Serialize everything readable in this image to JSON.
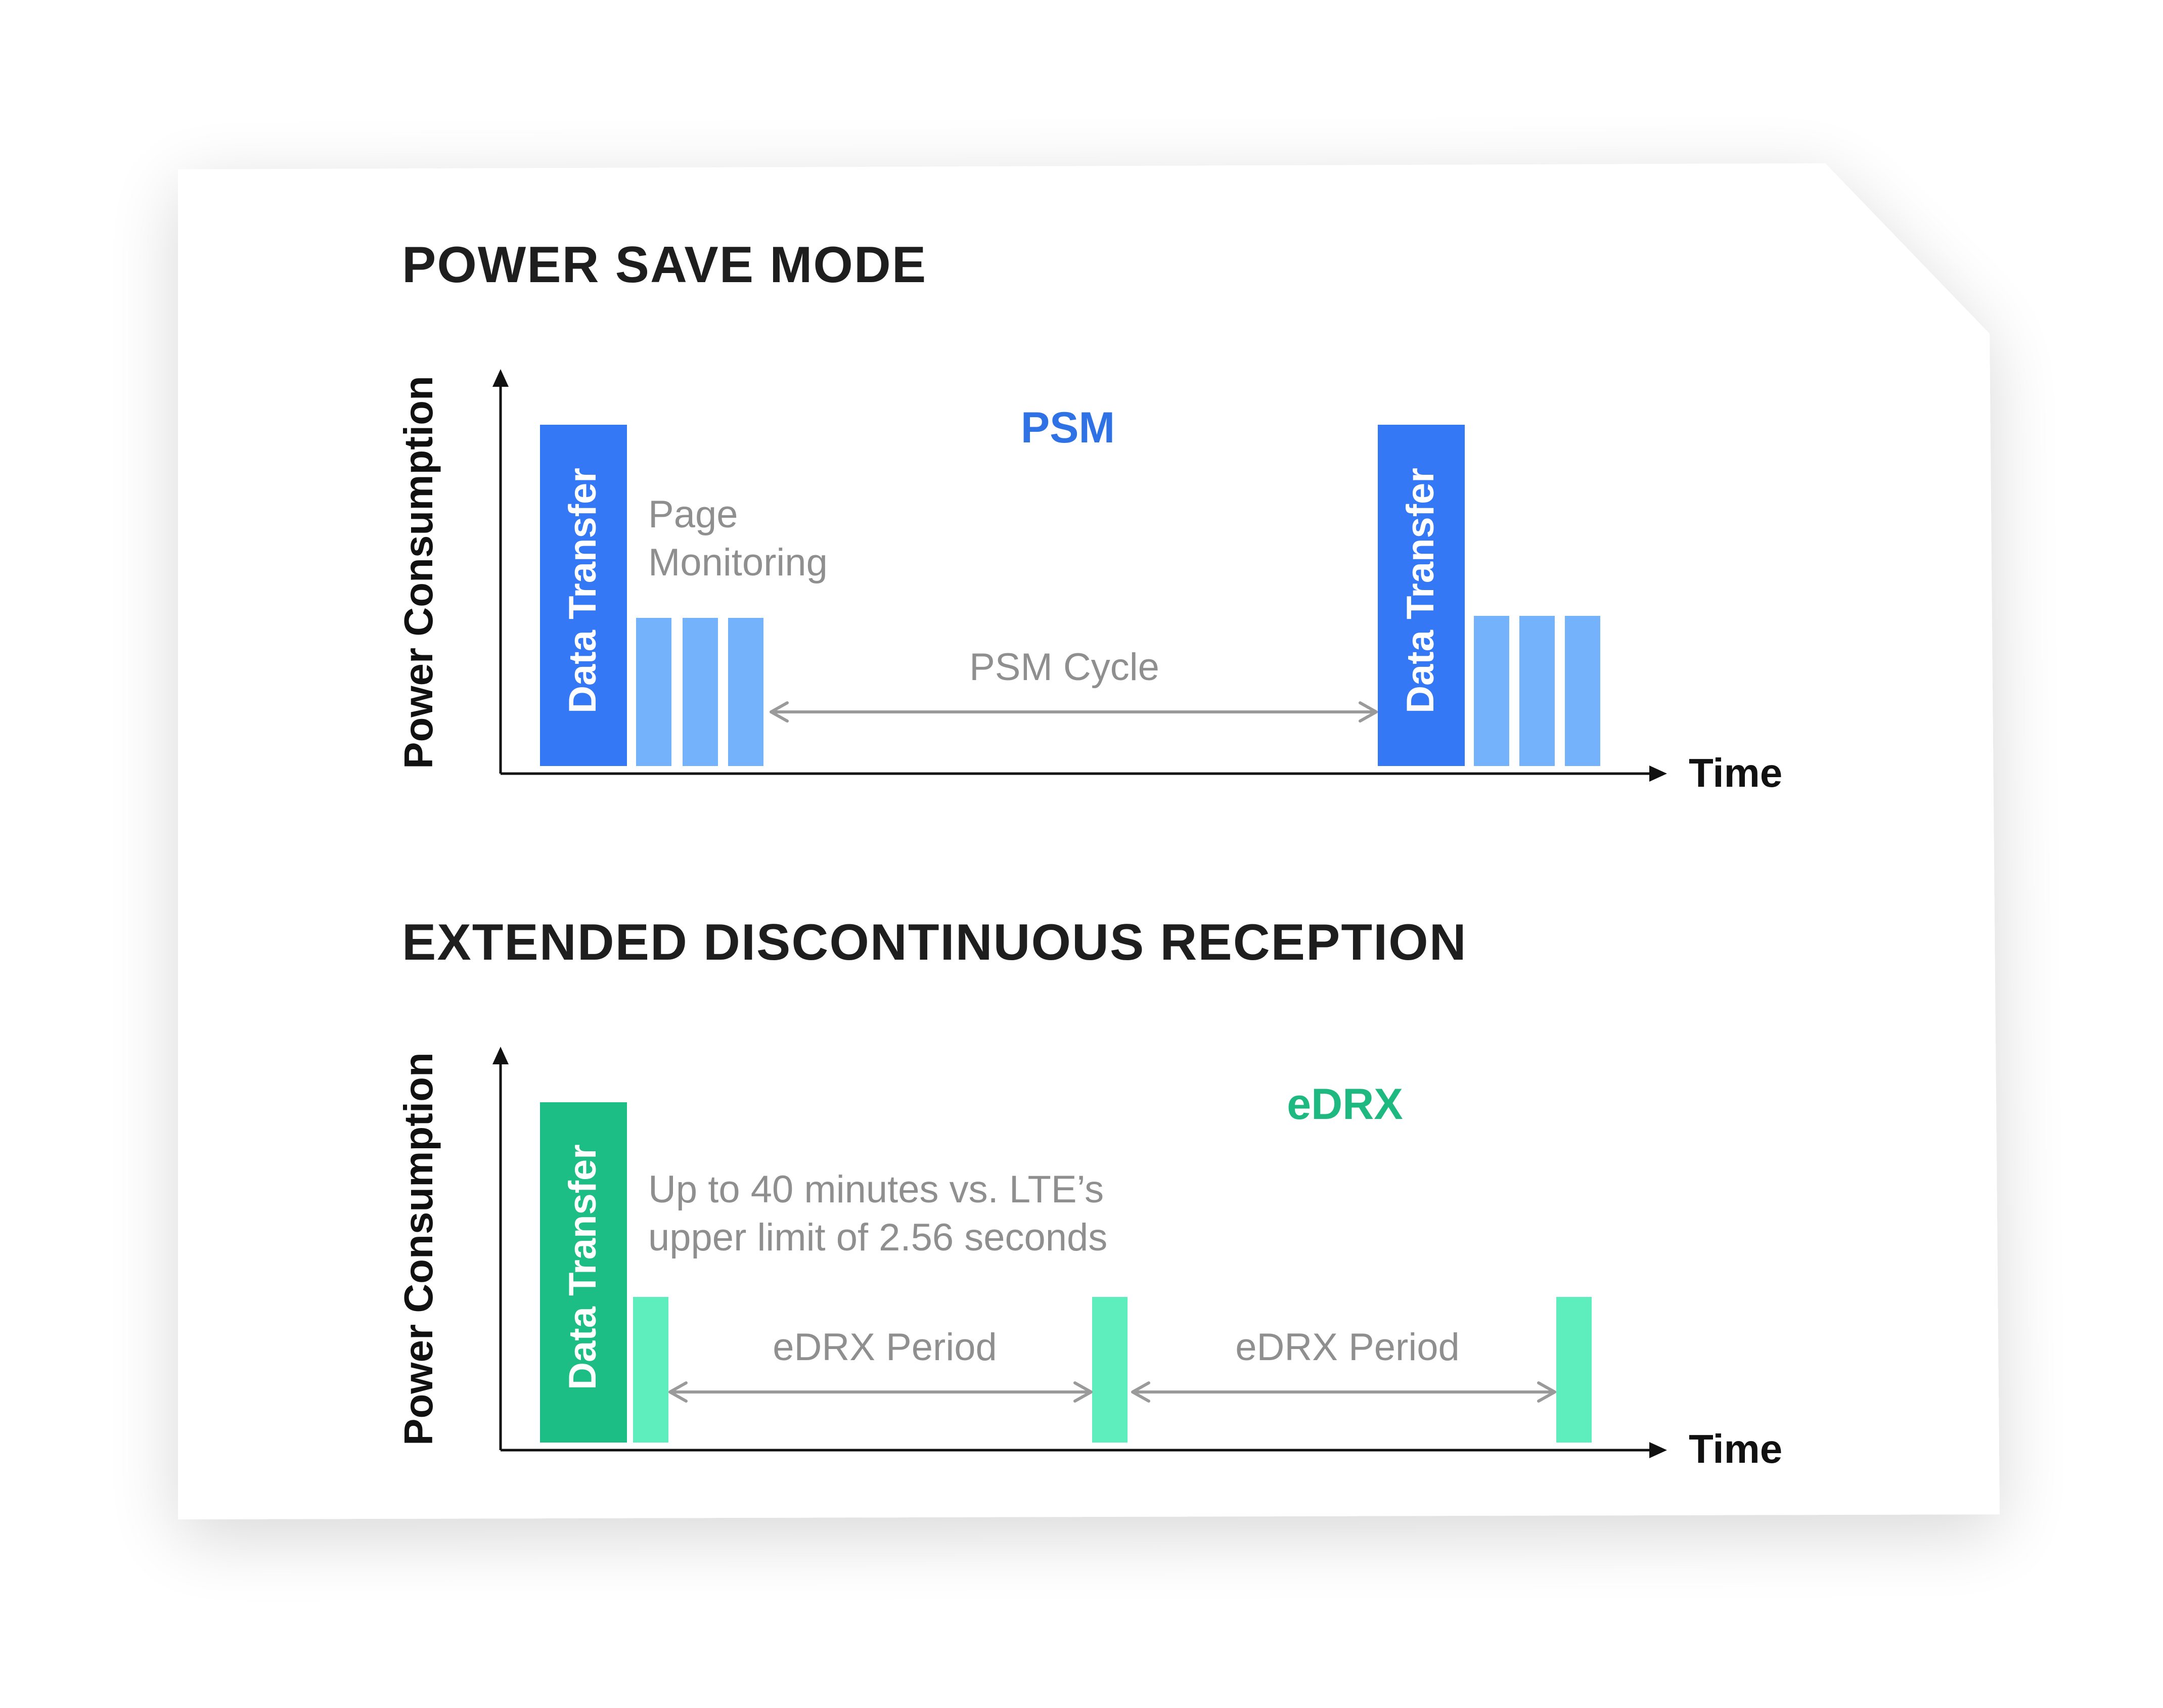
{
  "colors": {
    "psm_dark": "#3478F6",
    "psm_light": "#74B3FC",
    "edrx_dark": "#1DBE86",
    "edrx_light": "#5EEDBD",
    "psm_label": "#2F72E6",
    "edrx_label": "#1DB981",
    "axis": "#111111",
    "annotation_gray": "#8F8F8F",
    "arrow_gray": "#9A9A9A",
    "heading": "#1E1E1E"
  },
  "psm": {
    "title": "POWER SAVE MODE",
    "mode_label": "PSM",
    "y_axis_label": "Power Consumption",
    "x_axis_label": "Time",
    "data_transfer_label_1": "Data Transfer",
    "data_transfer_label_2": "Data Transfer",
    "page_monitoring_line1": "Page",
    "page_monitoring_line2": "Monitoring",
    "cycle_label": "PSM Cycle"
  },
  "edrx": {
    "title": "EXTENDED DISCONTINUOUS RECEPTION",
    "mode_label": "eDRX",
    "y_axis_label": "Power Consumption",
    "x_axis_label": "Time",
    "data_transfer_label": "Data Transfer",
    "note_line1": "Up to 40 minutes vs. LTE’s",
    "note_line2": "upper limit of 2.56 seconds",
    "period_label_1": "eDRX Period",
    "period_label_2": "eDRX Period"
  }
}
